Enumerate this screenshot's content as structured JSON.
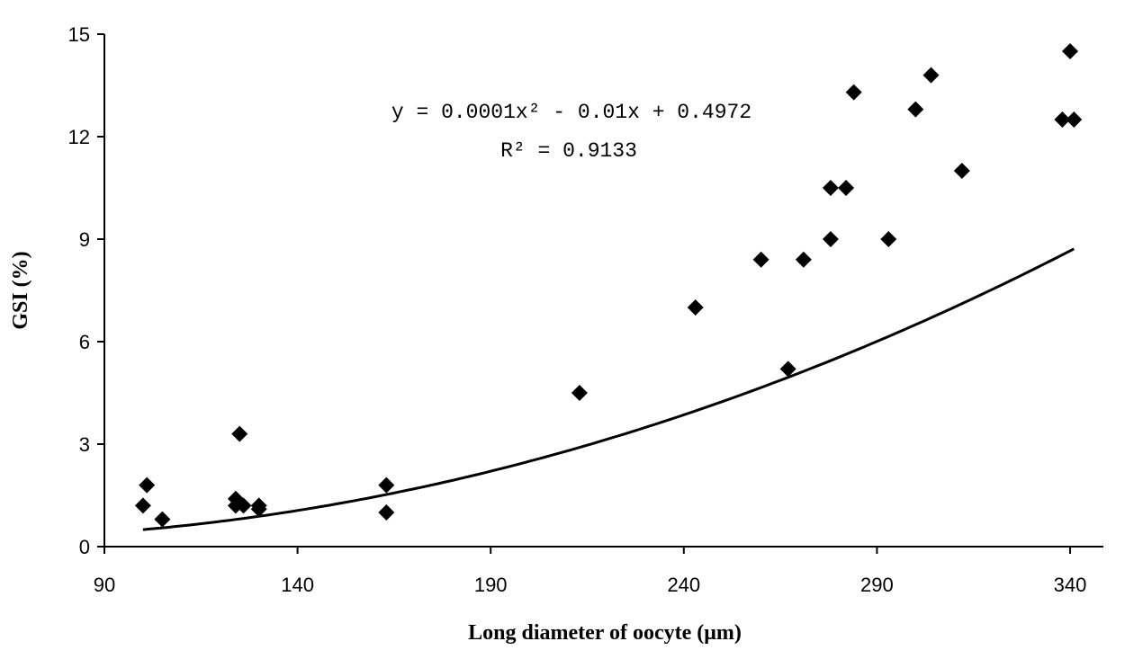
{
  "chart_data": {
    "type": "scatter",
    "title": "",
    "xlabel": "Long diameter of oocyte (μm)",
    "ylabel": "GSI (%)",
    "xlim": [
      90,
      340
    ],
    "ylim": [
      0,
      15
    ],
    "xticks": [
      90,
      140,
      190,
      240,
      290,
      340
    ],
    "yticks": [
      0,
      3,
      6,
      9,
      12,
      15
    ],
    "grid": false,
    "legend": "none",
    "point_color": "#000000",
    "marker": "diamond",
    "series": [
      {
        "points": [
          [
            100,
            1.2
          ],
          [
            101,
            1.8
          ],
          [
            105,
            0.8
          ],
          [
            124,
            1.4
          ],
          [
            124,
            1.2
          ],
          [
            125,
            3.3
          ],
          [
            126,
            1.2
          ],
          [
            130,
            1.2
          ],
          [
            130,
            1.1
          ],
          [
            163,
            1.8
          ],
          [
            163,
            1.0
          ],
          [
            213,
            4.5
          ],
          [
            243,
            7.0
          ],
          [
            260,
            8.4
          ],
          [
            267,
            5.2
          ],
          [
            271,
            8.4
          ],
          [
            278,
            9.0
          ],
          [
            278,
            10.5
          ],
          [
            282,
            10.5
          ],
          [
            284,
            13.3
          ],
          [
            293,
            9.0
          ],
          [
            300,
            12.8
          ],
          [
            304,
            13.8
          ],
          [
            312,
            11.0
          ],
          [
            338,
            12.5
          ],
          [
            340,
            14.5
          ],
          [
            341,
            12.5
          ]
        ]
      }
    ],
    "trendline": {
      "type": "polynomial",
      "coefficients": [
        0.0001,
        -0.01,
        0.4972
      ],
      "equation": "y = 0.0001x² - 0.01x + 0.4972",
      "r_squared": "R² = 0.9133"
    }
  }
}
